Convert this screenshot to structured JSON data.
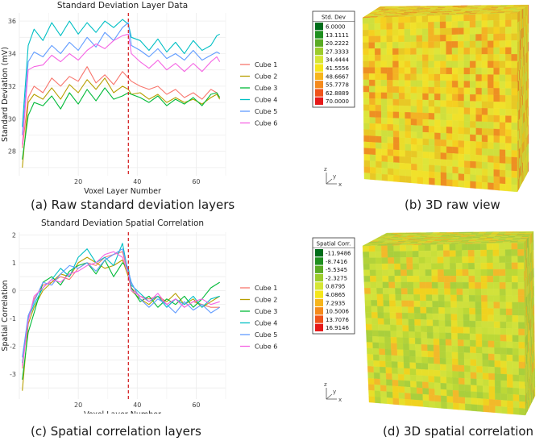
{
  "captions": {
    "a": "(a) Raw standard deviation layers",
    "b": "(b) 3D raw view",
    "c": "(c) Spatial correlation layers",
    "d": "(d) 3D spatial correlation"
  },
  "chart_data": [
    {
      "type": "line",
      "title": "Standard Deviation Layer Data",
      "xlabel": "Voxel Layer Number",
      "ylabel": "Standard Deviation (mV)",
      "xlim": [
        0,
        70
      ],
      "ylim": [
        26.5,
        36.5
      ],
      "xticks": [
        20,
        40,
        60
      ],
      "yticks": [
        28,
        30,
        32,
        34,
        36
      ],
      "grid": true,
      "legend_position": "right",
      "vline": {
        "x": 37,
        "color": "#d62728",
        "style": "dashed"
      },
      "series": [
        {
          "name": "Cube 1",
          "color": "#F8766D",
          "x": [
            1,
            3,
            5,
            8,
            11,
            14,
            17,
            20,
            23,
            26,
            29,
            32,
            35,
            37,
            38,
            41,
            44,
            47,
            50,
            53,
            56,
            59,
            62,
            65,
            67,
            68
          ],
          "y": [
            28.2,
            31.3,
            32.0,
            31.6,
            32.5,
            32.0,
            32.6,
            32.3,
            33.2,
            32.2,
            32.7,
            32.1,
            32.9,
            32.5,
            32.3,
            32.0,
            31.8,
            32.0,
            31.5,
            31.8,
            31.3,
            31.6,
            31.2,
            31.8,
            31.6,
            31.3
          ]
        },
        {
          "name": "Cube 2",
          "color": "#B79F00",
          "x": [
            1,
            3,
            5,
            8,
            11,
            14,
            17,
            20,
            23,
            26,
            29,
            32,
            35,
            37,
            38,
            41,
            44,
            47,
            50,
            53,
            56,
            59,
            62,
            65,
            67,
            68
          ],
          "y": [
            27.0,
            31.0,
            31.5,
            31.2,
            31.9,
            31.2,
            32.1,
            31.6,
            32.4,
            31.8,
            32.5,
            31.6,
            32.0,
            31.8,
            31.5,
            31.6,
            31.2,
            31.5,
            31.0,
            31.3,
            31.0,
            31.2,
            30.9,
            31.3,
            31.5,
            31.2
          ]
        },
        {
          "name": "Cube 3",
          "color": "#00BA38",
          "x": [
            1,
            3,
            5,
            8,
            11,
            14,
            17,
            20,
            23,
            26,
            29,
            32,
            35,
            37,
            38,
            41,
            44,
            47,
            50,
            53,
            56,
            59,
            62,
            65,
            67,
            68
          ],
          "y": [
            27.5,
            30.2,
            31.0,
            30.8,
            31.4,
            30.6,
            31.6,
            30.9,
            31.8,
            31.1,
            31.9,
            31.2,
            31.4,
            31.6,
            31.5,
            31.3,
            31.0,
            31.4,
            30.8,
            31.2,
            30.9,
            31.3,
            30.8,
            31.5,
            31.6,
            31.3
          ]
        },
        {
          "name": "Cube 4",
          "color": "#00BFC4",
          "x": [
            1,
            3,
            5,
            8,
            11,
            14,
            17,
            20,
            23,
            26,
            29,
            32,
            35,
            37,
            38,
            41,
            44,
            47,
            50,
            53,
            56,
            59,
            62,
            65,
            67,
            68
          ],
          "y": [
            29.5,
            34.5,
            35.5,
            34.8,
            35.9,
            35.1,
            36.0,
            35.2,
            35.9,
            35.3,
            36.0,
            35.6,
            36.1,
            35.8,
            35.0,
            34.8,
            34.2,
            34.9,
            34.1,
            34.7,
            34.0,
            34.8,
            34.2,
            34.5,
            35.1,
            35.2
          ]
        },
        {
          "name": "Cube 5",
          "color": "#619CFF",
          "x": [
            1,
            3,
            5,
            8,
            11,
            14,
            17,
            20,
            23,
            26,
            29,
            32,
            35,
            37,
            38,
            41,
            44,
            47,
            50,
            53,
            56,
            59,
            62,
            65,
            67,
            68
          ],
          "y": [
            29.0,
            33.5,
            34.1,
            33.8,
            34.5,
            34.0,
            34.7,
            34.2,
            35.0,
            34.4,
            35.3,
            34.8,
            35.6,
            35.9,
            34.5,
            34.2,
            33.8,
            34.3,
            33.7,
            34.0,
            33.6,
            34.2,
            33.6,
            33.9,
            34.1,
            34.0
          ]
        },
        {
          "name": "Cube 6",
          "color": "#F564E3",
          "x": [
            1,
            3,
            5,
            8,
            11,
            14,
            17,
            20,
            23,
            26,
            29,
            32,
            35,
            37,
            38,
            41,
            44,
            47,
            50,
            53,
            56,
            59,
            62,
            65,
            67,
            68
          ],
          "y": [
            28.4,
            33.0,
            33.2,
            33.3,
            33.9,
            33.5,
            34.0,
            33.6,
            34.2,
            34.6,
            34.3,
            34.8,
            35.1,
            35.2,
            34.0,
            33.5,
            33.1,
            33.6,
            33.0,
            33.4,
            32.9,
            33.4,
            32.9,
            33.5,
            33.8,
            33.5
          ]
        }
      ]
    },
    {
      "type": "line",
      "title": "Standard Deviation Spatial Correlation",
      "xlabel": "Voxel Layer Number",
      "ylabel": "Spatial Correlation",
      "xlim": [
        0,
        70
      ],
      "ylim": [
        -3.9,
        2.1
      ],
      "xticks": [
        20,
        40,
        60
      ],
      "yticks": [
        -3,
        -2,
        -1,
        0,
        1,
        2
      ],
      "grid": true,
      "legend_position": "right",
      "vline": {
        "x": 37,
        "color": "#d62728",
        "style": "dashed"
      },
      "series": [
        {
          "name": "Cube 1",
          "color": "#F8766D",
          "x": [
            1,
            3,
            5,
            8,
            11,
            14,
            17,
            20,
            23,
            26,
            29,
            32,
            35,
            37,
            38,
            41,
            44,
            47,
            50,
            53,
            56,
            59,
            62,
            65,
            68
          ],
          "y": [
            -2.8,
            -1.0,
            -0.3,
            0.2,
            0.3,
            0.5,
            0.4,
            0.8,
            1.0,
            0.9,
            1.2,
            1.3,
            1.4,
            0.6,
            0.1,
            -0.2,
            -0.3,
            -0.2,
            -0.5,
            -0.3,
            -0.6,
            -0.4,
            -0.5,
            -0.6,
            -0.6
          ]
        },
        {
          "name": "Cube 2",
          "color": "#B79F00",
          "x": [
            1,
            3,
            5,
            8,
            11,
            14,
            17,
            20,
            23,
            26,
            29,
            32,
            35,
            37,
            38,
            41,
            44,
            47,
            50,
            53,
            56,
            59,
            62,
            65,
            68
          ],
          "y": [
            -3.6,
            -1.2,
            -0.6,
            0.0,
            0.3,
            0.6,
            0.5,
            1.0,
            1.2,
            1.0,
            0.8,
            0.9,
            1.1,
            0.5,
            0.0,
            -0.3,
            -0.5,
            -0.2,
            -0.4,
            -0.1,
            -0.5,
            -0.3,
            -0.6,
            -0.4,
            -0.2
          ]
        },
        {
          "name": "Cube 3",
          "color": "#00BA38",
          "x": [
            1,
            3,
            5,
            8,
            11,
            14,
            17,
            20,
            23,
            26,
            29,
            32,
            35,
            37,
            38,
            41,
            44,
            47,
            50,
            53,
            56,
            59,
            62,
            65,
            68
          ],
          "y": [
            -3.2,
            -1.5,
            -0.8,
            0.3,
            0.5,
            0.2,
            0.7,
            0.9,
            1.0,
            0.6,
            1.1,
            0.5,
            1.0,
            0.8,
            0.1,
            -0.4,
            -0.2,
            -0.6,
            -0.3,
            -0.5,
            -0.2,
            -0.6,
            -0.3,
            0.1,
            0.3
          ]
        },
        {
          "name": "Cube 4",
          "color": "#00BFC4",
          "x": [
            1,
            3,
            5,
            8,
            11,
            14,
            17,
            20,
            23,
            26,
            29,
            32,
            35,
            37,
            38,
            41,
            44,
            47,
            50,
            53,
            56,
            59,
            62,
            65,
            68
          ],
          "y": [
            -2.6,
            -1.0,
            -0.5,
            0.1,
            0.4,
            0.8,
            0.5,
            1.2,
            1.5,
            1.0,
            1.2,
            0.9,
            1.7,
            0.6,
            0.2,
            -0.1,
            -0.4,
            -0.2,
            -0.6,
            -0.3,
            -0.5,
            -0.2,
            -0.6,
            -0.3,
            -0.2
          ]
        },
        {
          "name": "Cube 5",
          "color": "#619CFF",
          "x": [
            1,
            3,
            5,
            8,
            11,
            14,
            17,
            20,
            23,
            26,
            29,
            32,
            35,
            37,
            38,
            41,
            44,
            47,
            50,
            53,
            56,
            59,
            62,
            65,
            68
          ],
          "y": [
            -2.4,
            -0.9,
            -0.4,
            0.3,
            0.2,
            0.6,
            0.9,
            0.8,
            1.0,
            0.7,
            1.1,
            1.3,
            1.5,
            0.7,
            0.3,
            -0.3,
            -0.6,
            -0.3,
            -0.5,
            -0.8,
            -0.4,
            -0.7,
            -0.5,
            -0.8,
            -0.6
          ]
        },
        {
          "name": "Cube 6",
          "color": "#F564E3",
          "x": [
            1,
            3,
            5,
            8,
            11,
            14,
            17,
            20,
            23,
            26,
            29,
            32,
            35,
            37,
            38,
            41,
            44,
            47,
            50,
            53,
            56,
            59,
            62,
            65,
            68
          ],
          "y": [
            -2.7,
            -1.1,
            -0.2,
            0.1,
            0.4,
            0.3,
            0.6,
            0.7,
            0.9,
            1.0,
            1.3,
            1.4,
            1.2,
            0.6,
            0.0,
            -0.2,
            -0.4,
            -0.1,
            -0.5,
            -0.3,
            -0.6,
            -0.4,
            -0.3,
            -0.5,
            -0.4
          ]
        }
      ]
    }
  ],
  "cubes": [
    {
      "legend_title": "Std. Dev",
      "legend": [
        {
          "value": "6.0000",
          "color": "#006d1a"
        },
        {
          "value": "13.1111",
          "color": "#1f8f1f"
        },
        {
          "value": "20.2222",
          "color": "#5aab24"
        },
        {
          "value": "27.3333",
          "color": "#9ccc2c"
        },
        {
          "value": "34.4444",
          "color": "#d6e635"
        },
        {
          "value": "41.5556",
          "color": "#f5e61b"
        },
        {
          "value": "48.6667",
          "color": "#f7b51c"
        },
        {
          "value": "55.7778",
          "color": "#f58a1c"
        },
        {
          "value": "62.8889",
          "color": "#f0541b"
        },
        {
          "value": "70.0000",
          "color": "#e61a1a"
        }
      ],
      "axis_labels": {
        "z": "z",
        "y": "y",
        "x": "x"
      },
      "palette": [
        "#f1e12a",
        "#eadd2a",
        "#e8c825",
        "#f3b324",
        "#dde53a",
        "#cfdf3d",
        "#f5d020",
        "#ee8f22",
        "#e8e032"
      ]
    },
    {
      "legend_title": "Spatial Corr.",
      "legend": [
        {
          "value": "-11.9486",
          "color": "#006d1a"
        },
        {
          "value": "-8.7416",
          "color": "#1f8f1f"
        },
        {
          "value": "-5.5345",
          "color": "#5aab24"
        },
        {
          "value": "-2.3275",
          "color": "#9ccc2c"
        },
        {
          "value": "0.8795",
          "color": "#d6e635"
        },
        {
          "value": "4.0865",
          "color": "#f5e61b"
        },
        {
          "value": "7.2935",
          "color": "#f7b51c"
        },
        {
          "value": "10.5006",
          "color": "#f58a1c"
        },
        {
          "value": "13.7076",
          "color": "#f0541b"
        },
        {
          "value": "16.9146",
          "color": "#e61a1a"
        }
      ],
      "axis_labels": {
        "z": "z",
        "y": "y",
        "x": "x"
      },
      "palette": [
        "#c9df3a",
        "#bcd836",
        "#d2e23b",
        "#e7df2a",
        "#f0d21f",
        "#b2d23a",
        "#cfe03c",
        "#f2b92a",
        "#a9cf3c"
      ]
    }
  ]
}
